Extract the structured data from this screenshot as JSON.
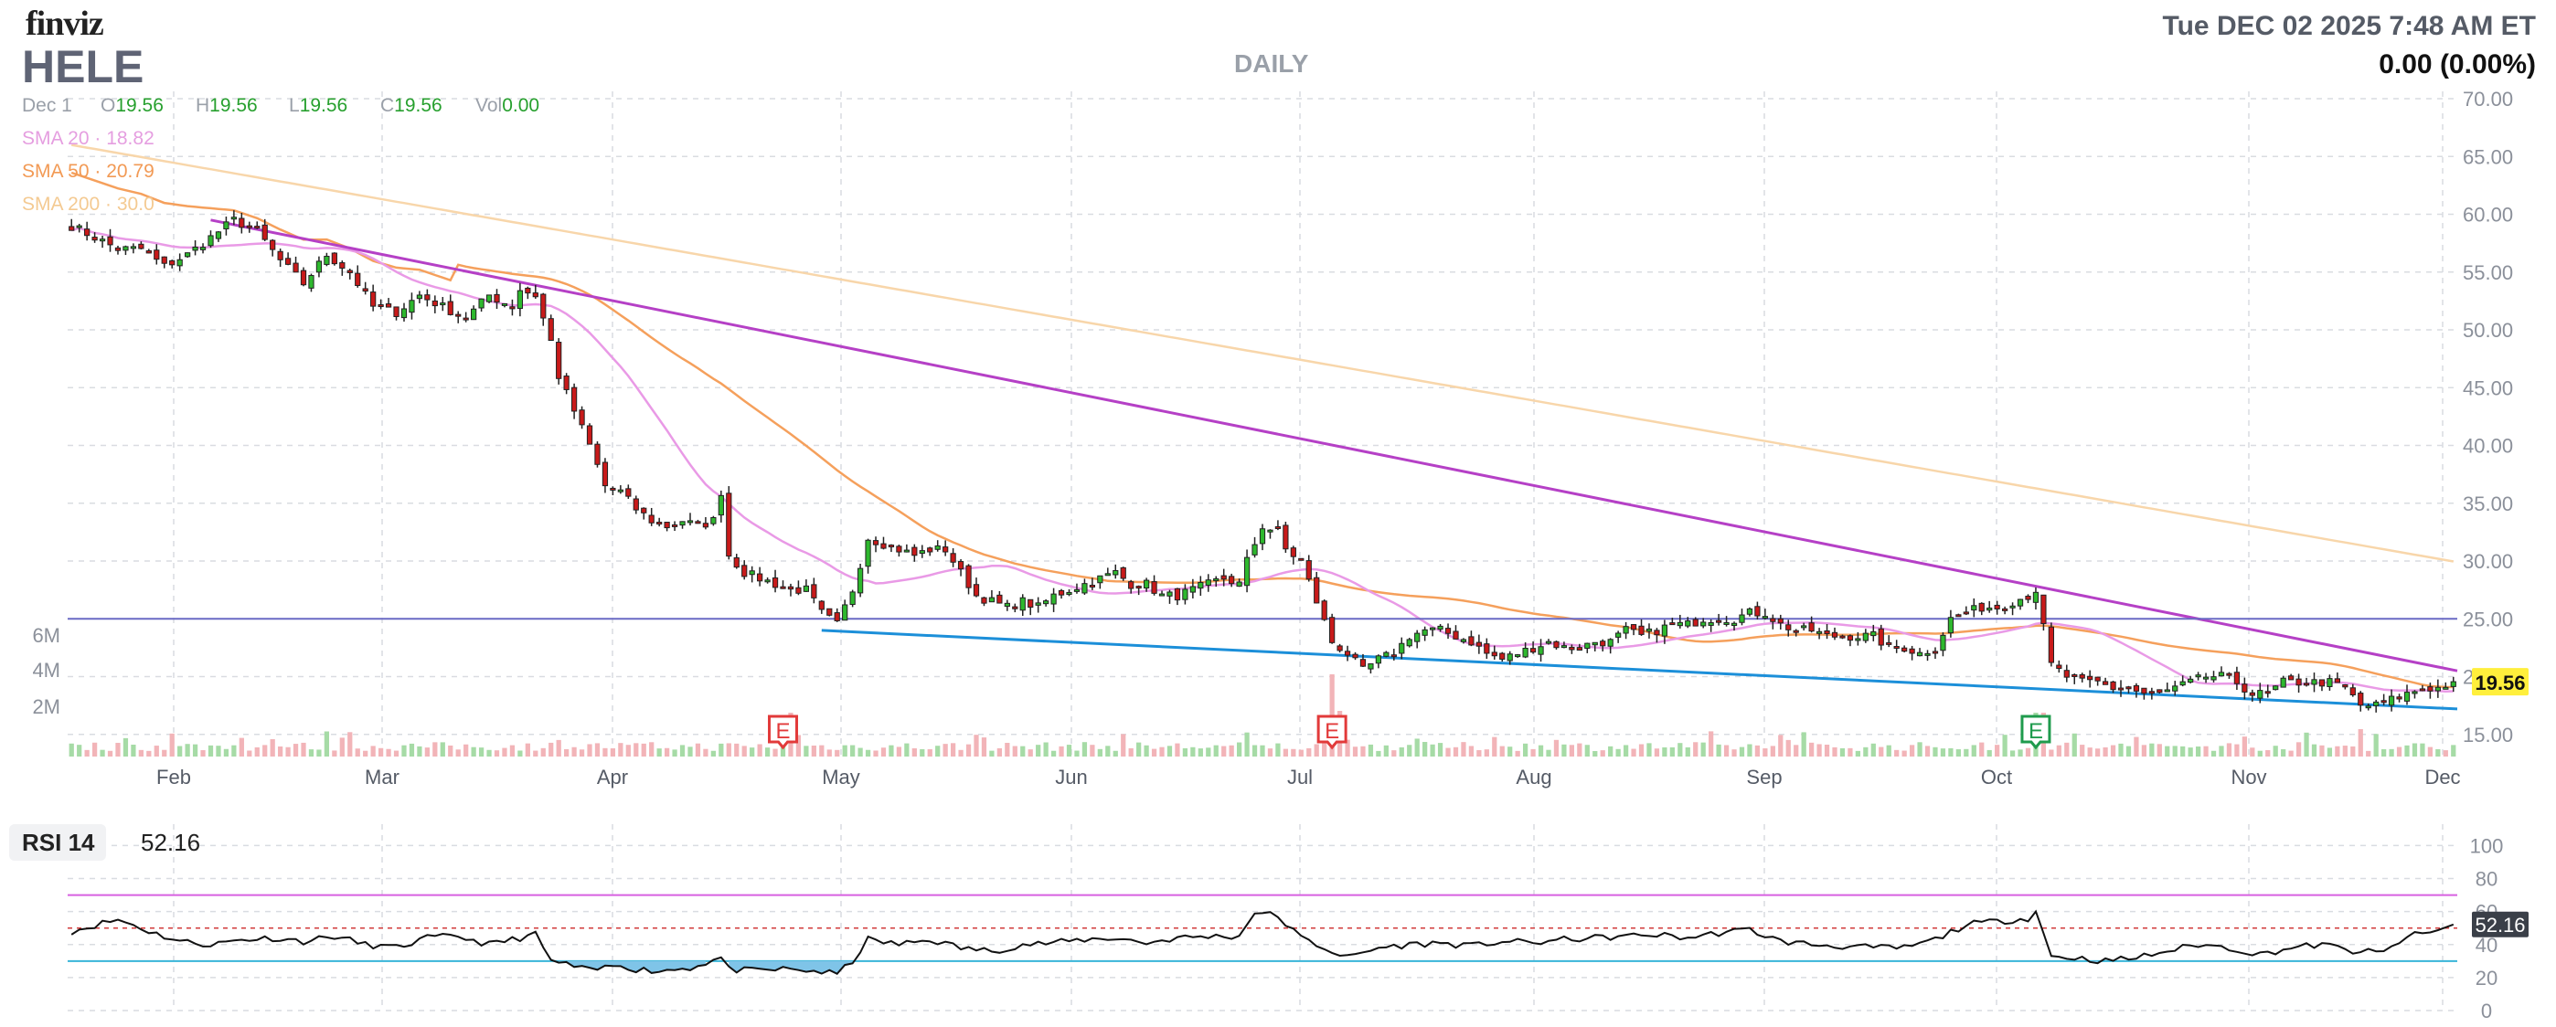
{
  "header": {
    "brand": "finviz",
    "ticker": "HELE",
    "period": "DAILY",
    "datetime": "Tue DEC 02 2025 7:48 AM ET",
    "change": "0.00 (0.00%)"
  },
  "ohlc": {
    "date": "Dec 1",
    "o_label": "O",
    "o": "19.56",
    "h_label": "H",
    "h": "19.56",
    "l_label": "L",
    "l": "19.56",
    "c_label": "C",
    "c": "19.56",
    "vol_label": "Vol",
    "vol": "0.00"
  },
  "sma": {
    "sma20": "SMA 20 · 18.82",
    "sma50": "SMA 50 · 20.79",
    "sma200": "SMA 200 · 30.0"
  },
  "rsi": {
    "label": "RSI 14",
    "value": "52.16"
  },
  "colors": {
    "up": "#2eb82e",
    "down": "#c81a1a",
    "volume_up": "#a6dba6",
    "volume_down": "#f2b4b8",
    "sma20": "#e99ae6",
    "sma50": "#f5a05c",
    "sma200": "#f8d6aa",
    "trend_upper": "#b540c6",
    "trend_lower": "#1c8fd9",
    "horizontal": "#6a6ac4",
    "rsi_line": "#111111",
    "rsi_over": "#d860e0",
    "rsi_under": "#38b4d8",
    "rsi_fill": "#7fc4e8",
    "price_badge": "#ffef3c",
    "earnings": "#e23a3a",
    "earnings_next": "#1f9b4d"
  },
  "chart_data": [
    {
      "type": "candlestick",
      "title": "HELE",
      "ylim": [
        15,
        70
      ],
      "y_ticks": [
        "70.00",
        "65.00",
        "60.00",
        "55.00",
        "50.00",
        "45.00",
        "40.00",
        "35.00",
        "30.00",
        "25.00",
        "20.00",
        "15.00"
      ],
      "x_ticks": [
        "Feb",
        "Mar",
        "Apr",
        "May",
        "Jun",
        "Jul",
        "Aug",
        "Sep",
        "Oct",
        "Nov",
        "Dec"
      ],
      "volume_ticks": [
        "6M",
        "4M",
        "2M"
      ],
      "last_price_badge": "19.56",
      "earnings_markers": [
        "E",
        "E",
        "E"
      ],
      "grid": true,
      "price_anchors": [
        [
          0,
          59
        ],
        [
          3,
          58
        ],
        [
          6,
          57
        ],
        [
          9,
          57
        ],
        [
          12,
          55.5
        ],
        [
          15,
          56.5
        ],
        [
          18,
          58
        ],
        [
          21,
          59.5
        ],
        [
          24,
          58.5
        ],
        [
          27,
          56
        ],
        [
          30,
          54
        ],
        [
          33,
          56.5
        ],
        [
          36,
          55
        ],
        [
          39,
          52
        ],
        [
          42,
          51.5
        ],
        [
          45,
          53
        ],
        [
          48,
          52
        ],
        [
          51,
          51
        ],
        [
          54,
          53
        ],
        [
          57,
          52
        ],
        [
          58,
          53.5
        ],
        [
          60,
          53
        ],
        [
          62,
          49
        ],
        [
          63,
          46
        ],
        [
          65,
          43
        ],
        [
          67,
          40
        ],
        [
          69,
          36.5
        ],
        [
          71,
          36
        ],
        [
          73,
          34.5
        ],
        [
          75,
          33.5
        ],
        [
          77,
          33
        ],
        [
          79,
          33.5
        ],
        [
          81,
          33
        ],
        [
          83,
          33.5
        ],
        [
          84,
          36
        ],
        [
          85,
          30.5
        ],
        [
          87,
          29
        ],
        [
          89,
          28.5
        ],
        [
          91,
          28
        ],
        [
          93,
          27.5
        ],
        [
          95,
          27.5
        ],
        [
          97,
          25.5
        ],
        [
          99,
          24.5
        ],
        [
          101,
          27.5
        ],
        [
          103,
          32
        ],
        [
          105,
          31.5
        ],
        [
          107,
          31
        ],
        [
          109,
          30.5
        ],
        [
          111,
          31
        ],
        [
          113,
          31
        ],
        [
          115,
          29
        ],
        [
          117,
          27
        ],
        [
          119,
          26.5
        ],
        [
          121,
          26
        ],
        [
          123,
          26.5
        ],
        [
          125,
          26
        ],
        [
          127,
          27
        ],
        [
          129,
          27.5
        ],
        [
          131,
          28
        ],
        [
          133,
          28.5
        ],
        [
          135,
          29
        ],
        [
          137,
          28
        ],
        [
          139,
          28
        ],
        [
          141,
          27
        ],
        [
          143,
          27
        ],
        [
          145,
          27.5
        ],
        [
          147,
          28
        ],
        [
          149,
          28.5
        ],
        [
          151,
          28
        ],
        [
          152,
          30
        ],
        [
          154,
          33
        ],
        [
          156,
          32.5
        ],
        [
          157,
          31
        ],
        [
          159,
          30
        ],
        [
          163,
          23
        ],
        [
          165,
          22
        ],
        [
          167,
          20.5
        ],
        [
          169,
          21.5
        ],
        [
          171,
          22
        ],
        [
          173,
          23.5
        ],
        [
          175,
          24
        ],
        [
          177,
          24
        ],
        [
          179,
          23.5
        ],
        [
          181,
          23
        ],
        [
          183,
          22
        ],
        [
          185,
          21.5
        ],
        [
          187,
          22
        ],
        [
          189,
          22.5
        ],
        [
          191,
          23
        ],
        [
          193,
          22.5
        ],
        [
          195,
          22.5
        ],
        [
          197,
          23
        ],
        [
          199,
          23
        ],
        [
          201,
          24
        ],
        [
          203,
          23.5
        ],
        [
          205,
          24
        ],
        [
          207,
          24.5
        ],
        [
          209,
          24.5
        ],
        [
          211,
          25
        ],
        [
          213,
          25
        ],
        [
          215,
          25
        ],
        [
          217,
          25.5
        ],
        [
          219,
          25.5
        ],
        [
          221,
          24.5
        ],
        [
          223,
          24
        ],
        [
          225,
          24
        ],
        [
          227,
          23.5
        ],
        [
          229,
          23.5
        ],
        [
          231,
          23.5
        ],
        [
          233,
          23.5
        ],
        [
          235,
          22.5
        ],
        [
          237,
          22.5
        ],
        [
          239,
          22
        ],
        [
          241,
          22.5
        ],
        [
          243,
          25
        ],
        [
          245,
          25.5
        ],
        [
          247,
          26
        ],
        [
          249,
          26
        ],
        [
          251,
          26.5
        ],
        [
          253,
          27
        ],
        [
          254,
          27.5
        ],
        [
          256,
          21
        ],
        [
          258,
          20
        ],
        [
          260,
          19.5
        ],
        [
          262,
          19.5
        ],
        [
          264,
          19
        ],
        [
          266,
          19
        ],
        [
          268,
          18.5
        ],
        [
          270,
          18.5
        ],
        [
          272,
          19
        ],
        [
          274,
          19.5
        ],
        [
          276,
          20
        ],
        [
          278,
          20
        ],
        [
          280,
          19.5
        ],
        [
          282,
          18.5
        ],
        [
          284,
          18.5
        ],
        [
          286,
          19.5
        ],
        [
          288,
          19.5
        ],
        [
          290,
          19.5
        ],
        [
          292,
          19.5
        ],
        [
          294,
          19
        ],
        [
          296,
          17.5
        ],
        [
          298,
          17.5
        ],
        [
          300,
          18
        ],
        [
          302,
          18.5
        ],
        [
          304,
          19
        ],
        [
          306,
          19
        ],
        [
          308,
          19.56
        ]
      ],
      "bars": 309,
      "earnings_bar_index": [
        92,
        163,
        254
      ]
    },
    {
      "type": "line",
      "title": "RSI 14",
      "ylim": [
        0,
        100
      ],
      "y_ticks": [
        "100",
        "80",
        "60",
        "40",
        "20",
        "0"
      ],
      "overbought": 70,
      "oversold": 30,
      "midline": 50,
      "last_value": 52.16,
      "rsi_anchors": [
        [
          0,
          48
        ],
        [
          4,
          53
        ],
        [
          6,
          55
        ],
        [
          8,
          52
        ],
        [
          10,
          48
        ],
        [
          14,
          42
        ],
        [
          18,
          40
        ],
        [
          22,
          43
        ],
        [
          26,
          44
        ],
        [
          30,
          42
        ],
        [
          34,
          45
        ],
        [
          38,
          40
        ],
        [
          42,
          38
        ],
        [
          46,
          44
        ],
        [
          50,
          45
        ],
        [
          54,
          40
        ],
        [
          58,
          44
        ],
        [
          60,
          46
        ],
        [
          62,
          30
        ],
        [
          64,
          28
        ],
        [
          67,
          24
        ],
        [
          69,
          26
        ],
        [
          71,
          28
        ],
        [
          73,
          25
        ],
        [
          76,
          24
        ],
        [
          80,
          26
        ],
        [
          84,
          32
        ],
        [
          85,
          25
        ],
        [
          88,
          24
        ],
        [
          92,
          25
        ],
        [
          96,
          24
        ],
        [
          99,
          22
        ],
        [
          101,
          30
        ],
        [
          103,
          43
        ],
        [
          107,
          40
        ],
        [
          111,
          43
        ],
        [
          115,
          38
        ],
        [
          119,
          36
        ],
        [
          123,
          40
        ],
        [
          127,
          41
        ],
        [
          131,
          43
        ],
        [
          135,
          44
        ],
        [
          139,
          41
        ],
        [
          143,
          44
        ],
        [
          147,
          45
        ],
        [
          151,
          45
        ],
        [
          153,
          60
        ],
        [
          156,
          57
        ],
        [
          159,
          44
        ],
        [
          161,
          40
        ],
        [
          163,
          36
        ],
        [
          165,
          32
        ],
        [
          169,
          38
        ],
        [
          173,
          40
        ],
        [
          177,
          41
        ],
        [
          181,
          39
        ],
        [
          185,
          42
        ],
        [
          189,
          41
        ],
        [
          193,
          43
        ],
        [
          197,
          44
        ],
        [
          201,
          45
        ],
        [
          205,
          46
        ],
        [
          209,
          44
        ],
        [
          213,
          47
        ],
        [
          217,
          49
        ],
        [
          221,
          42
        ],
        [
          225,
          40
        ],
        [
          229,
          39
        ],
        [
          233,
          38
        ],
        [
          237,
          38
        ],
        [
          241,
          43
        ],
        [
          245,
          52
        ],
        [
          249,
          54
        ],
        [
          253,
          56
        ],
        [
          254,
          60
        ],
        [
          256,
          33
        ],
        [
          259,
          32
        ],
        [
          263,
          30
        ],
        [
          267,
          32
        ],
        [
          271,
          36
        ],
        [
          275,
          40
        ],
        [
          279,
          38
        ],
        [
          283,
          34
        ],
        [
          287,
          38
        ],
        [
          291,
          40
        ],
        [
          295,
          36
        ],
        [
          299,
          35
        ],
        [
          302,
          45
        ],
        [
          305,
          47
        ],
        [
          308,
          52.16
        ]
      ]
    }
  ]
}
